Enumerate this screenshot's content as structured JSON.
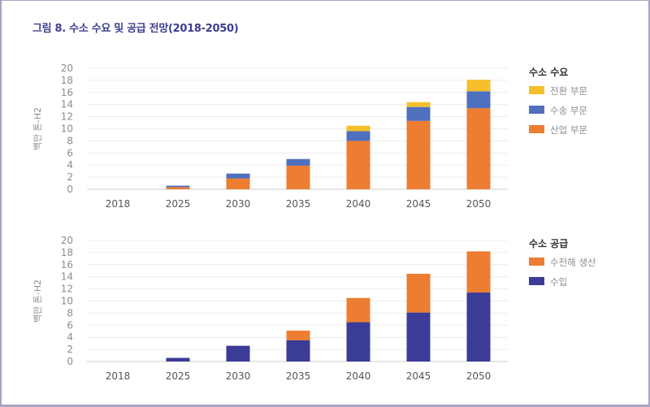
{
  "title": "그림 8. 수소 수요 및 공급 전망(2018-2050)",
  "chart_data": [
    {
      "type": "bar",
      "stacked": true,
      "title": "수소 수요",
      "categories": [
        "2018",
        "2025",
        "2030",
        "2035",
        "2040",
        "2045",
        "2050"
      ],
      "ylabel": "백만 톤-H2",
      "xlabel": "",
      "ylim": [
        0,
        20
      ],
      "yticks": [
        0,
        2,
        4,
        6,
        8,
        10,
        12,
        14,
        16,
        18,
        20
      ],
      "grid": true,
      "legend_title": "수소 수요",
      "legend_position": "right",
      "series": [
        {
          "name": "산업 부문",
          "color": "#ed7d31",
          "values": [
            0,
            0.35,
            1.8,
            3.9,
            8.0,
            11.3,
            13.4
          ]
        },
        {
          "name": "수송 부문",
          "color": "#4f6fbf",
          "values": [
            0,
            0.25,
            0.8,
            1.1,
            1.6,
            2.3,
            2.8
          ]
        },
        {
          "name": "전환 부문",
          "color": "#f4bf2a",
          "values": [
            0,
            0,
            0,
            0,
            0.9,
            0.8,
            1.9
          ]
        }
      ],
      "legend_order": [
        "전환 부문",
        "수송 부문",
        "산업 부문"
      ]
    },
    {
      "type": "bar",
      "stacked": true,
      "title": "수소 공급",
      "categories": [
        "2018",
        "2025",
        "2030",
        "2035",
        "2040",
        "2045",
        "2050"
      ],
      "ylabel": "백만 톤-H2",
      "xlabel": "",
      "ylim": [
        0,
        20
      ],
      "yticks": [
        0,
        2,
        4,
        6,
        8,
        10,
        12,
        14,
        16,
        18,
        20
      ],
      "grid": true,
      "legend_title": "수소 공급",
      "legend_position": "right",
      "series": [
        {
          "name": "수입",
          "color": "#3b3b98",
          "values": [
            0,
            0.6,
            2.6,
            3.5,
            6.5,
            8.1,
            11.4
          ]
        },
        {
          "name": "수전해 생산",
          "color": "#ed7d31",
          "values": [
            0,
            0,
            0,
            1.6,
            4.0,
            6.4,
            6.8
          ]
        }
      ],
      "legend_order": [
        "수전해 생산",
        "수입"
      ]
    }
  ]
}
